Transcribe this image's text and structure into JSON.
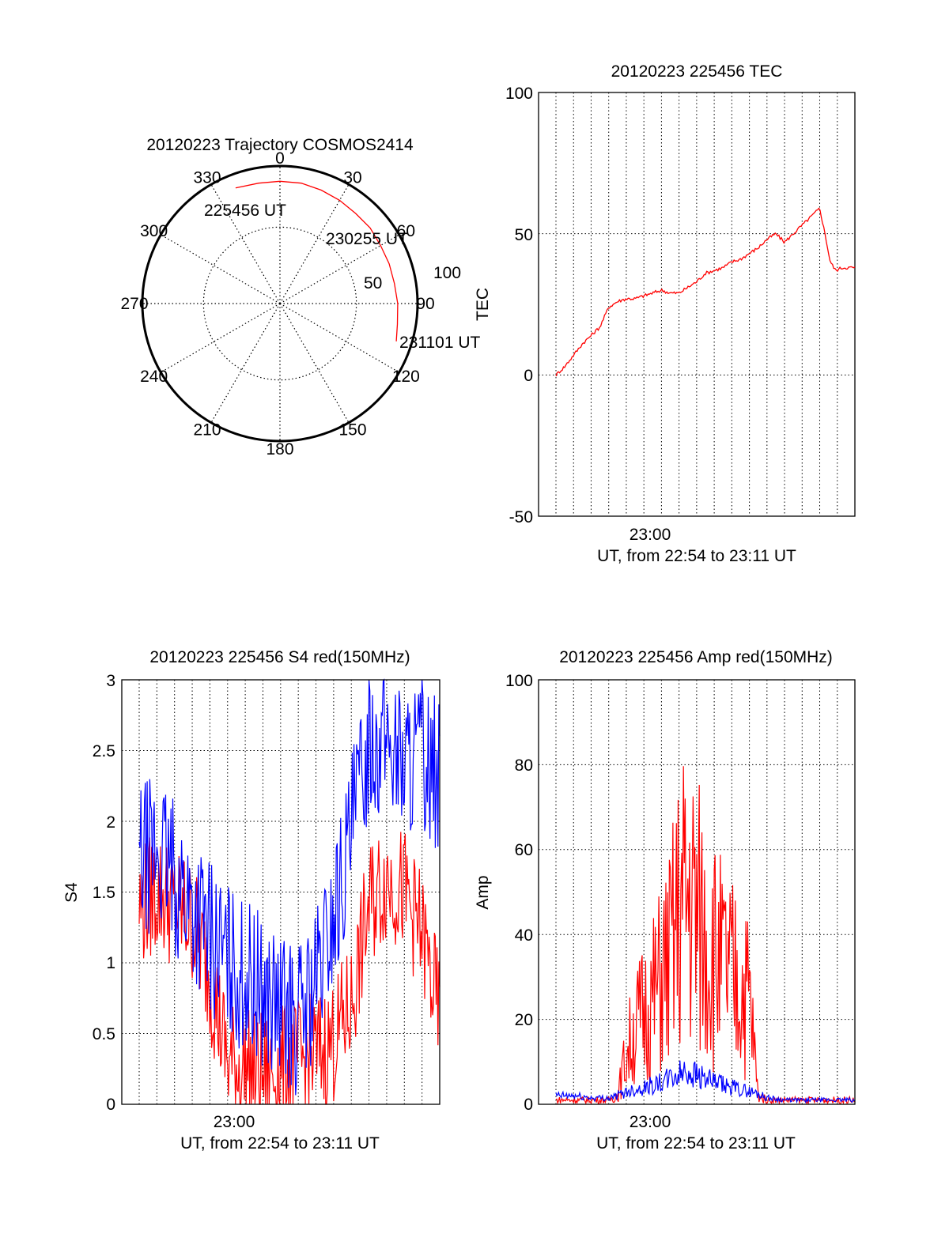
{
  "colors": {
    "red": "#ff0000",
    "blue": "#0000ff",
    "axis": "#000000",
    "grid": "#000000"
  },
  "chart_data": [
    {
      "type": "polar",
      "title": "20120223 Trajectory COSMOS2414",
      "azimuth_ticks": [
        "0",
        "30",
        "60",
        "90",
        "120",
        "150",
        "180",
        "210",
        "240",
        "270",
        "300",
        "330"
      ],
      "radial_ring_labels": [
        "50",
        "100"
      ],
      "annotations": [
        "225456 UT",
        "230255 UT",
        "231101 UT"
      ],
      "trajectory": {
        "azimuth_deg": [
          -21,
          -10,
          0,
          10,
          20,
          30,
          40,
          50,
          60,
          70,
          80,
          90,
          100,
          108
        ],
        "zenith": [
          81,
          80,
          80,
          80,
          79,
          78,
          77,
          77,
          76,
          76,
          76,
          77,
          78,
          80
        ]
      },
      "grid": true
    },
    {
      "type": "line",
      "title": "20120223 225456 TEC",
      "ylabel": "TEC",
      "xlabel": "UT, from 22:54 to 23:11 UT",
      "x_tick_labels": [
        "23:00"
      ],
      "y_tick_labels": [
        "100",
        "50",
        "0",
        "-50"
      ],
      "ylim": [
        -50,
        100
      ],
      "xlim": [
        "22:54",
        "23:11"
      ],
      "grid": true,
      "series": [
        {
          "x": [
            0,
            0.5,
            1,
            1.5,
            2,
            2.5,
            3,
            3.5,
            4,
            4.5,
            5,
            5.5,
            6,
            6.5,
            7,
            7.5,
            8,
            8.5,
            9,
            9.5,
            10,
            10.5,
            11,
            11.5,
            12,
            12.5,
            13,
            13.5,
            14,
            14.5,
            15,
            15.3,
            15.6,
            15.9,
            16.3,
            16.6,
            17
          ],
          "y": [
            0,
            3,
            7,
            11,
            14,
            17,
            24,
            26,
            27,
            27,
            28,
            29,
            30,
            29,
            29,
            31,
            33,
            36,
            37,
            38,
            40,
            41,
            43,
            45,
            48,
            50,
            47,
            50,
            53,
            56,
            59,
            50,
            40,
            37,
            38,
            38,
            38
          ]
        }
      ]
    },
    {
      "type": "line",
      "title": "20120223 225456 S4 red(150MHz)",
      "ylabel": "S4",
      "xlabel": "UT, from 22:54 to 23:11 UT",
      "x_tick_labels": [
        "23:00"
      ],
      "y_tick_labels": [
        "3",
        "2.5",
        "2",
        "1.5",
        "1",
        "0.5",
        "0"
      ],
      "ylim": [
        0,
        3
      ],
      "xlim": [
        "22:54",
        "23:11"
      ],
      "grid": true,
      "series": [
        {
          "x": [
            0,
            1,
            2,
            3,
            4,
            5,
            6,
            7,
            8,
            9,
            10,
            11,
            12,
            13,
            14,
            15,
            16,
            17
          ],
          "y": [
            1.4,
            1.5,
            1.4,
            1.3,
            0.9,
            0.3,
            0.25,
            0.2,
            0.25,
            0.3,
            0.35,
            0.45,
            0.7,
            1.4,
            1.6,
            1.5,
            1.2,
            0.6
          ]
        },
        {
          "x": [
            0,
            1,
            2,
            3,
            4,
            5,
            6,
            7,
            8,
            9,
            10,
            11,
            12,
            13,
            14,
            15,
            16,
            17
          ],
          "y": [
            1.7,
            1.8,
            1.6,
            1.4,
            1.2,
            1.0,
            0.9,
            0.8,
            0.65,
            0.6,
            0.85,
            1.3,
            1.9,
            2.6,
            2.6,
            2.4,
            2.5,
            2.3
          ]
        }
      ]
    },
    {
      "type": "line",
      "title": "20120223 225456 Amp red(150MHz)",
      "ylabel": "Amp",
      "xlabel": "UT, from 22:54 to 23:11 UT",
      "x_tick_labels": [
        "23:00"
      ],
      "y_tick_labels": [
        "100",
        "80",
        "60",
        "40",
        "20",
        "0"
      ],
      "ylim": [
        0,
        100
      ],
      "xlim": [
        "22:54",
        "23:11"
      ],
      "grid": true,
      "series": [
        {
          "x": [
            0,
            1,
            2,
            3,
            3.5,
            4,
            4.5,
            5,
            5.5,
            6,
            6.5,
            7,
            7.5,
            8,
            8.5,
            9,
            9.5,
            10,
            10.5,
            11,
            11.5,
            12,
            13,
            14,
            15,
            16,
            17
          ],
          "y": [
            1,
            1,
            1,
            1,
            2,
            12,
            18,
            22,
            25,
            30,
            35,
            45,
            50,
            45,
            40,
            36,
            32,
            30,
            28,
            26,
            2,
            1,
            1,
            1,
            1,
            1,
            1
          ]
        },
        {
          "x": [
            0,
            1,
            2,
            3,
            3.5,
            4,
            5,
            6,
            7,
            7.5,
            8,
            9,
            10,
            11,
            11.5,
            12,
            13,
            14,
            15,
            16,
            17
          ],
          "y": [
            2,
            2,
            1.5,
            1.5,
            2,
            3,
            4,
            5,
            7,
            8,
            7,
            5,
            4,
            3,
            2.5,
            1.5,
            1,
            1,
            1,
            1,
            1
          ]
        }
      ]
    }
  ]
}
